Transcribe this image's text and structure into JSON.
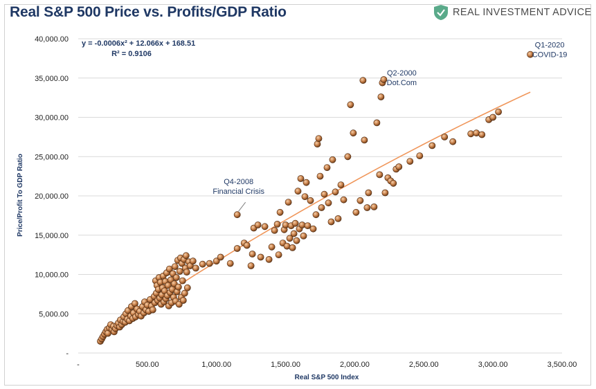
{
  "title": "Real S&P 500 Price vs. Profits/GDP Ratio",
  "brand": {
    "name": "REAL INVESTMENT ADVICE",
    "icon": "shield-check-icon",
    "accent": "#5aaa8a"
  },
  "chart_data": {
    "type": "scatter",
    "xlabel": "Real S&P 500 Index",
    "ylabel": "Price/Profit To GDP Ratio",
    "xlim": [
      0,
      3500
    ],
    "ylim": [
      0,
      40000
    ],
    "x_ticks": [
      "-",
      "500.00",
      "1,000.00",
      "1,500.00",
      "2,000.00",
      "2,500.00",
      "3,000.00",
      "3,500.00"
    ],
    "y_ticks": [
      "-",
      "5,000.00",
      "10,000.00",
      "15,000.00",
      "20,000.00",
      "25,000.00",
      "30,000.00",
      "35,000.00",
      "40,000.00"
    ],
    "grid": true,
    "marker_color": "#c8804a",
    "trend_color": "#f0965a",
    "trendline": {
      "equation": "y = -0.0006x² + 12.066x + 168.51",
      "r2": "R² = 0.9106",
      "a": -0.0006,
      "b": 12.066,
      "c": 168.51,
      "x_range": [
        160,
        3270
      ]
    },
    "annotations": [
      {
        "lines": [
          "Q1-2020",
          "COVID-19"
        ],
        "x": 3270,
        "y": 38000
      },
      {
        "lines": [
          "Q2-2000",
          "Dot.Com"
        ],
        "x": 2200,
        "y": 34800
      },
      {
        "lines": [
          "Q4-2008",
          "Financial Crisis"
        ],
        "x": 1150,
        "y": 17600
      }
    ],
    "points": [
      [
        160,
        1500
      ],
      [
        170,
        1800
      ],
      [
        180,
        2100
      ],
      [
        190,
        2400
      ],
      [
        200,
        2700
      ],
      [
        210,
        3000
      ],
      [
        215,
        2500
      ],
      [
        225,
        3200
      ],
      [
        235,
        3600
      ],
      [
        245,
        3000
      ],
      [
        255,
        3400
      ],
      [
        260,
        2700
      ],
      [
        270,
        3100
      ],
      [
        280,
        3500
      ],
      [
        290,
        3800
      ],
      [
        300,
        3300
      ],
      [
        305,
        4200
      ],
      [
        315,
        3600
      ],
      [
        325,
        4000
      ],
      [
        330,
        4600
      ],
      [
        340,
        3900
      ],
      [
        345,
        5000
      ],
      [
        355,
        4300
      ],
      [
        360,
        5400
      ],
      [
        370,
        4100
      ],
      [
        380,
        4700
      ],
      [
        385,
        5900
      ],
      [
        395,
        4400
      ],
      [
        400,
        5100
      ],
      [
        410,
        6300
      ],
      [
        415,
        4600
      ],
      [
        425,
        5600
      ],
      [
        435,
        4900
      ],
      [
        445,
        5300
      ],
      [
        455,
        4700
      ],
      [
        465,
        5900
      ],
      [
        475,
        5100
      ],
      [
        480,
        6500
      ],
      [
        490,
        5500
      ],
      [
        500,
        6100
      ],
      [
        510,
        5300
      ],
      [
        520,
        6800
      ],
      [
        530,
        6000
      ],
      [
        540,
        5500
      ],
      [
        550,
        7200
      ],
      [
        555,
        6400
      ],
      [
        560,
        9200
      ],
      [
        565,
        7600
      ],
      [
        570,
        8600
      ],
      [
        575,
        6700
      ],
      [
        580,
        8100
      ],
      [
        585,
        9600
      ],
      [
        590,
        7000
      ],
      [
        595,
        9000
      ],
      [
        600,
        6200
      ],
      [
        605,
        7400
      ],
      [
        610,
        8300
      ],
      [
        615,
        9800
      ],
      [
        620,
        6500
      ],
      [
        625,
        7900
      ],
      [
        630,
        9100
      ],
      [
        635,
        6900
      ],
      [
        640,
        10200
      ],
      [
        645,
        7300
      ],
      [
        650,
        8600
      ],
      [
        655,
        6000
      ],
      [
        660,
        10700
      ],
      [
        665,
        7700
      ],
      [
        670,
        9300
      ],
      [
        675,
        6400
      ],
      [
        680,
        8100
      ],
      [
        685,
        10100
      ],
      [
        690,
        7100
      ],
      [
        695,
        8800
      ],
      [
        700,
        11000
      ],
      [
        705,
        6600
      ],
      [
        710,
        9600
      ],
      [
        715,
        7800
      ],
      [
        720,
        11800
      ],
      [
        725,
        8400
      ],
      [
        730,
        6200
      ],
      [
        735,
        10400
      ],
      [
        740,
        12100
      ],
      [
        745,
        7100
      ],
      [
        750,
        11400
      ],
      [
        755,
        9200
      ],
      [
        760,
        6700
      ],
      [
        765,
        11900
      ],
      [
        770,
        7600
      ],
      [
        775,
        10800
      ],
      [
        780,
        12400
      ],
      [
        785,
        10300
      ],
      [
        790,
        8300
      ],
      [
        800,
        11600
      ],
      [
        810,
        11100
      ],
      [
        830,
        11700
      ],
      [
        850,
        10800
      ],
      [
        900,
        11300
      ],
      [
        950,
        11400
      ],
      [
        1000,
        11700
      ],
      [
        1030,
        12200
      ],
      [
        1100,
        11400
      ],
      [
        1150,
        17600
      ],
      [
        1150,
        13300
      ],
      [
        1200,
        14000
      ],
      [
        1220,
        13700
      ],
      [
        1250,
        11100
      ],
      [
        1260,
        12600
      ],
      [
        1270,
        15900
      ],
      [
        1300,
        16300
      ],
      [
        1320,
        12200
      ],
      [
        1350,
        16100
      ],
      [
        1380,
        11900
      ],
      [
        1400,
        13500
      ],
      [
        1420,
        15600
      ],
      [
        1440,
        16400
      ],
      [
        1450,
        12500
      ],
      [
        1460,
        17900
      ],
      [
        1480,
        14000
      ],
      [
        1490,
        15700
      ],
      [
        1500,
        16300
      ],
      [
        1510,
        13600
      ],
      [
        1520,
        19200
      ],
      [
        1530,
        14600
      ],
      [
        1540,
        16200
      ],
      [
        1550,
        13400
      ],
      [
        1560,
        15200
      ],
      [
        1570,
        16500
      ],
      [
        1580,
        14300
      ],
      [
        1590,
        20600
      ],
      [
        1600,
        15800
      ],
      [
        1610,
        22200
      ],
      [
        1620,
        16300
      ],
      [
        1630,
        14900
      ],
      [
        1640,
        19900
      ],
      [
        1650,
        21700
      ],
      [
        1660,
        16200
      ],
      [
        1680,
        19400
      ],
      [
        1700,
        15800
      ],
      [
        1720,
        17600
      ],
      [
        1730,
        26600
      ],
      [
        1740,
        27300
      ],
      [
        1750,
        22500
      ],
      [
        1760,
        18500
      ],
      [
        1780,
        20200
      ],
      [
        1800,
        23600
      ],
      [
        1810,
        19100
      ],
      [
        1830,
        16700
      ],
      [
        1840,
        24600
      ],
      [
        1860,
        20500
      ],
      [
        1880,
        17100
      ],
      [
        1900,
        21400
      ],
      [
        1920,
        19500
      ],
      [
        1950,
        25000
      ],
      [
        1970,
        31600
      ],
      [
        1990,
        28000
      ],
      [
        2010,
        17900
      ],
      [
        2040,
        19400
      ],
      [
        2060,
        34700
      ],
      [
        2070,
        27100
      ],
      [
        2090,
        18500
      ],
      [
        2100,
        20400
      ],
      [
        2140,
        18600
      ],
      [
        2160,
        29300
      ],
      [
        2180,
        22700
      ],
      [
        2190,
        32600
      ],
      [
        2200,
        34400
      ],
      [
        2210,
        34800
      ],
      [
        2220,
        20400
      ],
      [
        2240,
        22300
      ],
      [
        2260,
        21900
      ],
      [
        2280,
        21600
      ],
      [
        2300,
        23400
      ],
      [
        2320,
        23700
      ],
      [
        2400,
        24400
      ],
      [
        2470,
        25100
      ],
      [
        2560,
        26400
      ],
      [
        2650,
        27500
      ],
      [
        2710,
        26900
      ],
      [
        2840,
        27900
      ],
      [
        2880,
        28000
      ],
      [
        2920,
        27800
      ],
      [
        2970,
        29700
      ],
      [
        3000,
        30000
      ],
      [
        3040,
        30700
      ],
      [
        3270,
        38000
      ]
    ]
  }
}
